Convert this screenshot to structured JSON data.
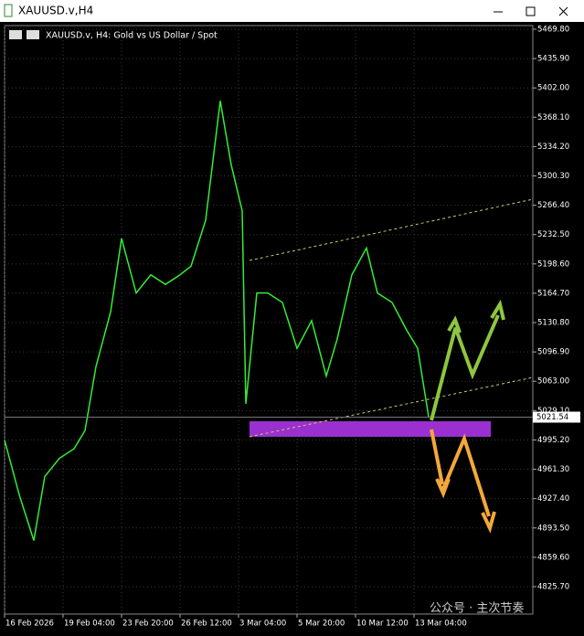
{
  "window_title": "XAUUSD.v,H4",
  "chart_data": {
    "type": "line",
    "title": "XAUUSD.v, H4:  Gold vs US Dollar / Spot",
    "x": [
      0,
      4,
      8,
      11,
      15,
      19,
      22,
      25,
      29,
      32,
      36,
      40,
      44,
      48,
      51,
      55,
      59,
      62,
      65,
      66,
      69,
      72,
      76,
      80,
      84,
      88,
      91,
      95,
      99,
      102,
      106,
      110,
      113,
      116
    ],
    "series": [
      {
        "color": "#33ee33",
        "values": [
          4995,
          4932,
          4879,
          4953,
          4974,
          4985,
          5006,
          5080,
          5143,
          5228,
          5165,
          5186,
          5175,
          5186,
          5196,
          5249,
          5387,
          5313,
          5260,
          5037,
          5165,
          5165,
          5154,
          5101,
          5133,
          5069,
          5112,
          5186,
          5217,
          5165,
          5154,
          5122,
          5101,
          5022
        ]
      }
    ],
    "xlim": [
      0,
      144.5
    ],
    "xticks": [
      {
        "value": 0,
        "label": "16 Feb 2026"
      },
      {
        "value": 16,
        "label": "19 Feb 04:00"
      },
      {
        "value": 32,
        "label": "23 Feb 20:00"
      },
      {
        "value": 48,
        "label": "26 Feb 12:00"
      },
      {
        "value": 64,
        "label": "3 Mar 04:00"
      },
      {
        "value": 80,
        "label": "5 Mar 20:00"
      },
      {
        "value": 96,
        "label": "10 Mar 12:00"
      },
      {
        "value": 112,
        "label": "13 Mar 04:00"
      }
    ],
    "ylim": [
      4794,
      5474
    ],
    "yticks": [
      {
        "value": 5469.8,
        "label": "5469.80"
      },
      {
        "value": 5435.9,
        "label": "5435.90"
      },
      {
        "value": 5402,
        "label": "5402.00"
      },
      {
        "value": 5368.1,
        "label": "5368.10"
      },
      {
        "value": 5334.2,
        "label": "5334.20"
      },
      {
        "value": 5300.3,
        "label": "5300.30"
      },
      {
        "value": 5266.4,
        "label": "5266.40"
      },
      {
        "value": 5232.5,
        "label": "5232.50"
      },
      {
        "value": 5198.6,
        "label": "5198.60"
      },
      {
        "value": 5164.7,
        "label": "5164.70"
      },
      {
        "value": 5130.8,
        "label": "5130.80"
      },
      {
        "value": 5096.9,
        "label": "5096.90"
      },
      {
        "value": 5063,
        "label": "5063.00"
      },
      {
        "value": 5029.1,
        "label": "5029.10"
      },
      {
        "value": 4995.2,
        "label": "4995.20"
      },
      {
        "value": 4961.3,
        "label": "4961.30"
      },
      {
        "value": 4927.4,
        "label": "4927.40"
      },
      {
        "value": 4893.5,
        "label": "4893.50"
      },
      {
        "value": 4859.6,
        "label": "4859.60"
      },
      {
        "value": 4825.7,
        "label": "4825.70"
      }
    ],
    "grid": true,
    "current_price": 5021.54
  },
  "watermark": "公众号 · 主次节奏"
}
